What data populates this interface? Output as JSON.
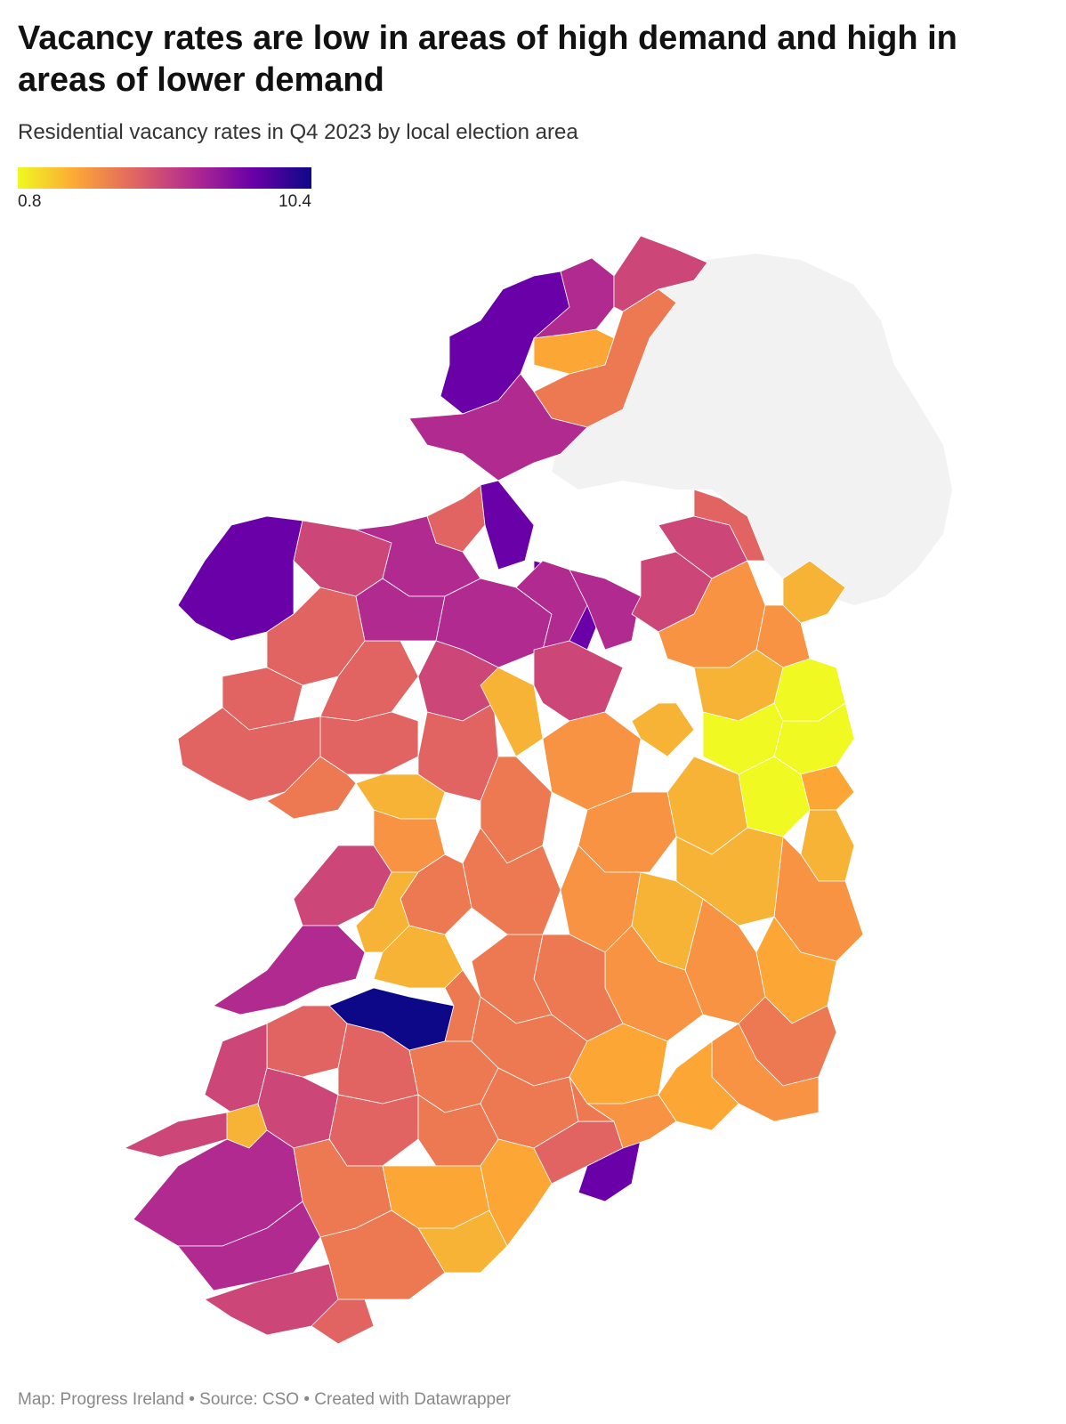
{
  "title": "Vacancy rates are low in areas of high demand and high in areas of lower demand",
  "subtitle": "Residential vacancy rates in Q4 2023 by local election area",
  "legend": {
    "min_label": "0.8",
    "max_label": "10.4",
    "min_value": 0.8,
    "max_value": 10.4,
    "color_stops": [
      "#f0f921",
      "#fca636",
      "#e16462",
      "#b12a90",
      "#6a00a8",
      "#0d0887"
    ]
  },
  "map": {
    "subject": "Ireland local election areas",
    "no_data_color": "#f2f2f2",
    "no_data_region": "Northern Ireland"
  },
  "footer": {
    "map_credit": "Map: Progress Ireland",
    "source": "Source: CSO",
    "tool": "Created with Datawrapper",
    "separator": " • "
  }
}
